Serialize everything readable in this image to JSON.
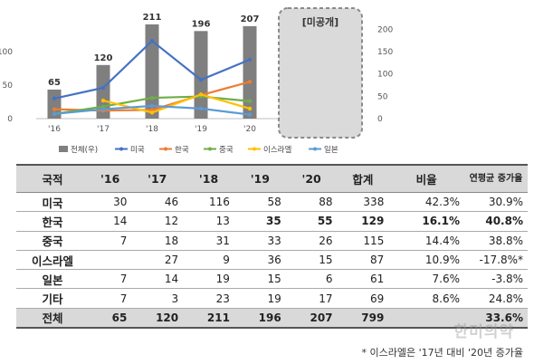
{
  "chart_data": {
    "type": "bar",
    "categories": [
      "'16",
      "'17",
      "'18",
      "'19",
      "'20"
    ],
    "bar_series": {
      "name": "전체(우)",
      "values": [
        65,
        120,
        211,
        196,
        207
      ],
      "color": "#7f7f7f"
    },
    "series": [
      {
        "name": "미국",
        "values": [
          30,
          46,
          116,
          58,
          88
        ],
        "color": "#4472c4"
      },
      {
        "name": "한국",
        "values": [
          14,
          12,
          13,
          35,
          55
        ],
        "color": "#ed7d31"
      },
      {
        "name": "중국",
        "values": [
          7,
          18,
          31,
          33,
          26
        ],
        "color": "#70ad47"
      },
      {
        "name": "이스라엘",
        "values": [
          null,
          27,
          9,
          36,
          15
        ],
        "color": "#ffc000"
      },
      {
        "name": "일본",
        "values": [
          7,
          14,
          19,
          15,
          6
        ],
        "color": "#5b9bd5"
      }
    ],
    "left_ticks": [
      "0",
      "50",
      "100"
    ],
    "right_ticks": [
      "0",
      "50",
      "100",
      "150",
      "200"
    ],
    "ylim_left": [
      0,
      150
    ],
    "ylim_right": [
      0,
      225
    ],
    "overlay_label": "[미공개]",
    "legend_position": "bottom"
  },
  "table": {
    "headers": [
      "국적",
      "'16",
      "'17",
      "'18",
      "'19",
      "'20",
      "합계",
      "비율",
      "연평균 증가율"
    ],
    "rows": [
      {
        "cat": "미국",
        "vals": [
          "30",
          "46",
          "116",
          "58",
          "88",
          "338",
          "42.3%",
          "30.9%"
        ],
        "bold": false
      },
      {
        "cat": "한국",
        "vals": [
          "14",
          "12",
          "13",
          "35",
          "55",
          "129",
          "16.1%",
          "40.8%"
        ],
        "bold": true
      },
      {
        "cat": "중국",
        "vals": [
          "7",
          "18",
          "31",
          "33",
          "26",
          "115",
          "14.4%",
          "38.8%"
        ],
        "bold": false
      },
      {
        "cat": "이스라엘",
        "vals": [
          "",
          "27",
          "9",
          "36",
          "15",
          "87",
          "10.9%",
          "-17.8%*"
        ],
        "bold": false
      },
      {
        "cat": "일본",
        "vals": [
          "7",
          "14",
          "19",
          "15",
          "6",
          "61",
          "7.6%",
          "-3.8%"
        ],
        "bold": false
      },
      {
        "cat": "기타",
        "vals": [
          "7",
          "3",
          "23",
          "19",
          "17",
          "69",
          "8.6%",
          "24.8%"
        ],
        "bold": false
      },
      {
        "cat": "전체",
        "vals": [
          "65",
          "120",
          "211",
          "196",
          "207",
          "799",
          "",
          "33.6%"
        ],
        "bold": false
      }
    ]
  },
  "footnote": "* 이스라엘은 '17년 대비 '20년 증가율",
  "watermark": "한미의약"
}
